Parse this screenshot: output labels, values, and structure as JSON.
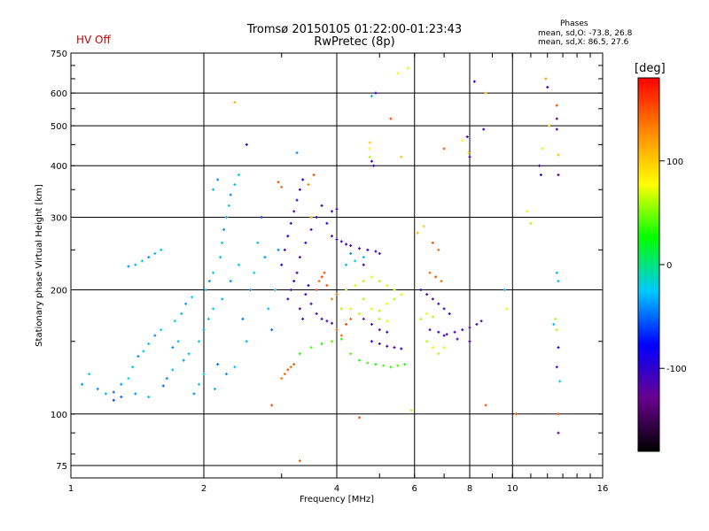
{
  "header": {
    "title_line1": "Tromsø 20150105 01:22:00-01:23:43",
    "title_line2": "RwPretec (8p)",
    "status": "HV Off",
    "phases_label": "Phases",
    "phases_o": "mean, sd,O: -73.8, 26.8",
    "phases_x": "mean, sd,X:  86.5, 27.6"
  },
  "colorbar": {
    "unit": "[deg]",
    "range": [
      -180,
      180
    ],
    "ticks": [
      {
        "value": 100,
        "label": "100"
      },
      {
        "value": 0,
        "label": "0"
      },
      {
        "value": -100,
        "label": "-100"
      }
    ],
    "colors": [
      "#000000",
      "#6a0090",
      "#0000ff",
      "#00c8ff",
      "#00ff00",
      "#ffff00",
      "#ff8800",
      "#ff0000"
    ]
  },
  "chart_data": {
    "type": "scatter",
    "title": "Tromsø 20150105 01:22:00-01:23:43",
    "subtitle": "RwPretec (8p)",
    "xlabel": "Frequency [MHz]",
    "ylabel": "Stationary phase Virtual Height [km]",
    "xscale": "log",
    "yscale": "log",
    "xlim": [
      1,
      16
    ],
    "ylim": [
      70,
      750
    ],
    "xticks": [
      {
        "v": 1,
        "label": "1"
      },
      {
        "v": 2,
        "label": "2"
      },
      {
        "v": 4,
        "label": "4"
      },
      {
        "v": 6,
        "label": "6"
      },
      {
        "v": 8,
        "label": "8"
      },
      {
        "v": 10,
        "label": "10"
      },
      {
        "v": 16,
        "label": "16"
      }
    ],
    "yticks": [
      {
        "v": 75,
        "label": "75"
      },
      {
        "v": 100,
        "label": "100"
      },
      {
        "v": 200,
        "label": "200"
      },
      {
        "v": 300,
        "label": "300"
      },
      {
        "v": 400,
        "label": "400"
      },
      {
        "v": 500,
        "label": "500"
      },
      {
        "v": 600,
        "label": "600"
      },
      {
        "v": 750,
        "label": "750"
      }
    ],
    "grid": true,
    "color_by": "phase [deg]",
    "points": [
      [
        1.06,
        118,
        -40
      ],
      [
        1.1,
        125,
        -20
      ],
      [
        1.15,
        115,
        -40
      ],
      [
        1.2,
        112,
        -30
      ],
      [
        1.25,
        113,
        -50
      ],
      [
        1.3,
        118,
        -40
      ],
      [
        1.35,
        122,
        -20
      ],
      [
        1.38,
        130,
        -30
      ],
      [
        1.42,
        138,
        -40
      ],
      [
        1.46,
        142,
        -20
      ],
      [
        1.5,
        148,
        -30
      ],
      [
        1.55,
        155,
        -40
      ],
      [
        1.6,
        160,
        -20
      ],
      [
        1.62,
        117,
        -50
      ],
      [
        1.65,
        122,
        -40
      ],
      [
        1.7,
        128,
        -30
      ],
      [
        1.72,
        168,
        -20
      ],
      [
        1.78,
        175,
        -30
      ],
      [
        1.82,
        185,
        -40
      ],
      [
        1.88,
        192,
        -20
      ],
      [
        1.9,
        112,
        -40
      ],
      [
        1.95,
        118,
        -30
      ],
      [
        2.0,
        125,
        -20
      ],
      [
        2.02,
        200,
        -30
      ],
      [
        2.06,
        210,
        -40
      ],
      [
        2.1,
        220,
        -20
      ],
      [
        2.12,
        115,
        -30
      ],
      [
        2.15,
        132,
        -50
      ],
      [
        2.18,
        240,
        -30
      ],
      [
        2.2,
        260,
        -20
      ],
      [
        2.22,
        280,
        -40
      ],
      [
        2.25,
        300,
        -30
      ],
      [
        2.28,
        320,
        -20
      ],
      [
        2.3,
        340,
        -40
      ],
      [
        2.35,
        360,
        -30
      ],
      [
        2.4,
        380,
        -20
      ],
      [
        2.2,
        190,
        -30
      ],
      [
        2.3,
        210,
        -40
      ],
      [
        2.4,
        230,
        -20
      ],
      [
        2.45,
        170,
        -50
      ],
      [
        2.5,
        150,
        -30
      ],
      [
        2.55,
        200,
        -40
      ],
      [
        2.6,
        220,
        -20
      ],
      [
        2.65,
        260,
        -30
      ],
      [
        2.7,
        300,
        -60
      ],
      [
        2.75,
        240,
        -40
      ],
      [
        2.8,
        180,
        -30
      ],
      [
        2.85,
        160,
        -50
      ],
      [
        2.9,
        200,
        -20
      ],
      [
        2.95,
        250,
        -40
      ],
      [
        1.4,
        230,
        -30
      ],
      [
        1.45,
        235,
        -20
      ],
      [
        1.5,
        240,
        -40
      ],
      [
        1.55,
        245,
        -30
      ],
      [
        1.6,
        250,
        -20
      ],
      [
        1.35,
        228,
        -40
      ],
      [
        1.25,
        108,
        -60
      ],
      [
        1.3,
        110,
        -50
      ],
      [
        1.4,
        112,
        -40
      ],
      [
        1.5,
        110,
        -30
      ],
      [
        1.8,
        135,
        -40
      ],
      [
        1.85,
        140,
        -30
      ],
      [
        1.95,
        150,
        -20
      ],
      [
        2.0,
        160,
        -40
      ],
      [
        2.05,
        170,
        -30
      ],
      [
        2.1,
        180,
        -20
      ],
      [
        1.7,
        145,
        -40
      ],
      [
        1.75,
        150,
        -30
      ],
      [
        2.25,
        125,
        -40
      ],
      [
        2.35,
        130,
        -30
      ],
      [
        3.1,
        190,
        -110
      ],
      [
        3.15,
        200,
        -120
      ],
      [
        3.2,
        210,
        -100
      ],
      [
        3.25,
        220,
        -110
      ],
      [
        3.3,
        180,
        -120
      ],
      [
        3.35,
        170,
        -100
      ],
      [
        3.4,
        195,
        -110
      ],
      [
        3.45,
        205,
        -90
      ],
      [
        3.5,
        185,
        -110
      ],
      [
        3.6,
        175,
        -120
      ],
      [
        3.7,
        170,
        -100
      ],
      [
        3.8,
        168,
        -110
      ],
      [
        3.9,
        166,
        -120
      ],
      [
        3.0,
        230,
        -100
      ],
      [
        3.05,
        250,
        -110
      ],
      [
        3.1,
        270,
        -90
      ],
      [
        3.15,
        290,
        -100
      ],
      [
        3.2,
        310,
        -110
      ],
      [
        3.25,
        330,
        -100
      ],
      [
        3.3,
        350,
        -110
      ],
      [
        3.35,
        370,
        -90
      ],
      [
        3.3,
        240,
        -120
      ],
      [
        3.4,
        260,
        -100
      ],
      [
        3.5,
        280,
        -110
      ],
      [
        3.6,
        300,
        -100
      ],
      [
        3.7,
        320,
        -110
      ],
      [
        3.8,
        290,
        -90
      ],
      [
        3.9,
        310,
        -100
      ],
      [
        4.0,
        314,
        -110
      ],
      [
        3.9,
        270,
        -120
      ],
      [
        4.0,
        265,
        -100
      ],
      [
        4.1,
        262,
        -110
      ],
      [
        4.2,
        258,
        -100
      ],
      [
        4.3,
        256,
        -120
      ],
      [
        4.5,
        252,
        -110
      ],
      [
        4.7,
        250,
        -100
      ],
      [
        4.9,
        248,
        -110
      ],
      [
        5.0,
        245,
        -120
      ],
      [
        4.2,
        230,
        -30
      ],
      [
        4.4,
        235,
        -20
      ],
      [
        4.6,
        240,
        -30
      ],
      [
        4.3,
        245,
        -40
      ],
      [
        3.05,
        125,
        140
      ],
      [
        3.1,
        128,
        150
      ],
      [
        3.15,
        130,
        145
      ],
      [
        3.0,
        122,
        135
      ],
      [
        3.2,
        132,
        150
      ],
      [
        3.6,
        200,
        150
      ],
      [
        3.65,
        210,
        140
      ],
      [
        3.7,
        215,
        155
      ],
      [
        3.75,
        220,
        145
      ],
      [
        3.8,
        205,
        150
      ],
      [
        4.0,
        160,
        150
      ],
      [
        4.1,
        155,
        140
      ],
      [
        4.2,
        165,
        155
      ],
      [
        4.3,
        170,
        145
      ],
      [
        3.9,
        190,
        130
      ],
      [
        4.0,
        195,
        140
      ],
      [
        3.3,
        140,
        30
      ],
      [
        3.5,
        145,
        40
      ],
      [
        3.7,
        148,
        30
      ],
      [
        3.9,
        150,
        40
      ],
      [
        4.1,
        152,
        30
      ],
      [
        4.3,
        140,
        40
      ],
      [
        4.5,
        135,
        30
      ],
      [
        4.7,
        133,
        40
      ],
      [
        4.9,
        132,
        30
      ],
      [
        5.1,
        131,
        40
      ],
      [
        5.3,
        130,
        30
      ],
      [
        5.5,
        131,
        40
      ],
      [
        5.7,
        132,
        30
      ],
      [
        4.2,
        200,
        60
      ],
      [
        4.4,
        205,
        70
      ],
      [
        4.6,
        210,
        60
      ],
      [
        4.8,
        215,
        70
      ],
      [
        5.0,
        210,
        60
      ],
      [
        5.2,
        205,
        70
      ],
      [
        5.4,
        200,
        60
      ],
      [
        4.6,
        190,
        60
      ],
      [
        4.8,
        180,
        70
      ],
      [
        5.0,
        178,
        60
      ],
      [
        5.2,
        185,
        70
      ],
      [
        5.4,
        190,
        60
      ],
      [
        5.6,
        195,
        70
      ],
      [
        4.5,
        175,
        60
      ],
      [
        4.3,
        180,
        70
      ],
      [
        5.0,
        170,
        60
      ],
      [
        5.2,
        168,
        70
      ],
      [
        4.1,
        180,
        60
      ],
      [
        4.6,
        230,
        -110
      ],
      [
        4.8,
        150,
        -110
      ],
      [
        5.0,
        148,
        -100
      ],
      [
        5.2,
        146,
        -110
      ],
      [
        5.4,
        145,
        -120
      ],
      [
        5.6,
        144,
        -100
      ],
      [
        5.0,
        160,
        -110
      ],
      [
        5.2,
        158,
        -100
      ],
      [
        4.8,
        165,
        -110
      ],
      [
        4.6,
        170,
        -120
      ],
      [
        6.2,
        200,
        -100
      ],
      [
        6.4,
        195,
        -110
      ],
      [
        6.6,
        190,
        -120
      ],
      [
        6.8,
        185,
        -100
      ],
      [
        7.0,
        180,
        -110
      ],
      [
        7.2,
        175,
        -100
      ],
      [
        6.5,
        160,
        -110
      ],
      [
        6.8,
        158,
        -100
      ],
      [
        7.1,
        156,
        -110
      ],
      [
        7.4,
        158,
        -120
      ],
      [
        7.7,
        160,
        -100
      ],
      [
        8.0,
        162,
        -110
      ],
      [
        8.3,
        165,
        -100
      ],
      [
        8.5,
        168,
        -110
      ],
      [
        7.0,
        155,
        -120
      ],
      [
        7.5,
        152,
        -100
      ],
      [
        8.0,
        150,
        -110
      ],
      [
        6.4,
        150,
        60
      ],
      [
        6.6,
        145,
        70
      ],
      [
        6.8,
        140,
        60
      ],
      [
        7.0,
        145,
        70
      ],
      [
        6.2,
        170,
        60
      ],
      [
        6.4,
        175,
        70
      ],
      [
        6.6,
        172,
        60
      ],
      [
        6.5,
        220,
        140
      ],
      [
        6.7,
        215,
        150
      ],
      [
        6.9,
        210,
        140
      ],
      [
        6.8,
        250,
        140
      ],
      [
        6.6,
        260,
        150
      ],
      [
        6.3,
        285,
        100
      ],
      [
        6.1,
        275,
        110
      ],
      [
        4.9,
        600,
        -100
      ],
      [
        4.8,
        590,
        -30
      ],
      [
        4.75,
        455,
        100
      ],
      [
        4.75,
        440,
        80
      ],
      [
        4.75,
        420,
        60
      ],
      [
        4.8,
        410,
        -100
      ],
      [
        4.85,
        400,
        -110
      ],
      [
        5.3,
        520,
        150
      ],
      [
        5.6,
        420,
        100
      ],
      [
        5.5,
        670,
        80
      ],
      [
        5.8,
        690,
        70
      ],
      [
        7.0,
        440,
        150
      ],
      [
        7.7,
        460,
        80
      ],
      [
        7.9,
        470,
        -120
      ],
      [
        7.95,
        430,
        90
      ],
      [
        8.0,
        420,
        -110
      ],
      [
        8.2,
        640,
        -110
      ],
      [
        8.6,
        490,
        -110
      ],
      [
        8.7,
        600,
        100
      ],
      [
        9.6,
        200,
        -30
      ],
      [
        9.7,
        180,
        70
      ],
      [
        10.2,
        100,
        150
      ],
      [
        10.8,
        310,
        70
      ],
      [
        11.0,
        290,
        60
      ],
      [
        11.5,
        400,
        -120
      ],
      [
        11.6,
        380,
        -100
      ],
      [
        11.7,
        440,
        70
      ],
      [
        11.9,
        650,
        120
      ],
      [
        12.0,
        620,
        -110
      ],
      [
        12.1,
        500,
        100
      ],
      [
        12.6,
        560,
        150
      ],
      [
        12.6,
        520,
        -130
      ],
      [
        12.6,
        490,
        -120
      ],
      [
        12.7,
        425,
        110
      ],
      [
        12.7,
        380,
        -120
      ],
      [
        12.6,
        220,
        -30
      ],
      [
        12.7,
        210,
        -30
      ],
      [
        12.5,
        170,
        60
      ],
      [
        12.6,
        160,
        60
      ],
      [
        12.4,
        165,
        -30
      ],
      [
        12.7,
        145,
        -100
      ],
      [
        12.6,
        130,
        -110
      ],
      [
        12.8,
        120,
        -20
      ],
      [
        12.7,
        100,
        150
      ],
      [
        12.7,
        90,
        -120
      ],
      [
        8.7,
        105,
        150
      ],
      [
        4.5,
        98,
        150
      ],
      [
        2.85,
        105,
        150
      ],
      [
        5.9,
        102,
        60
      ],
      [
        3.3,
        77,
        150
      ],
      [
        2.5,
        450,
        -100
      ],
      [
        2.35,
        570,
        110
      ],
      [
        3.25,
        430,
        -40
      ],
      [
        3.5,
        300,
        110
      ],
      [
        3.55,
        380,
        150
      ],
      [
        3.45,
        360,
        130
      ],
      [
        2.1,
        350,
        -30
      ],
      [
        2.15,
        370,
        -40
      ],
      [
        2.95,
        365,
        150
      ],
      [
        3.0,
        355,
        140
      ]
    ]
  }
}
